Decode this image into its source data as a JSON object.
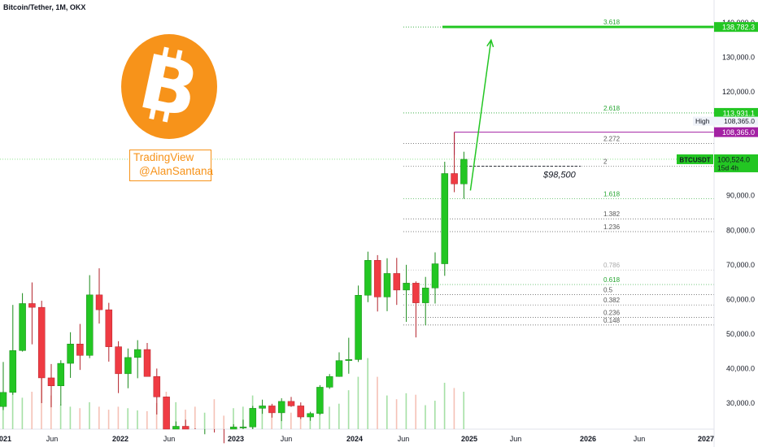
{
  "header": {
    "title": "Bitcoin/Tether, 1M, OKX"
  },
  "watermark": {
    "line1": "TradingView",
    "line2": "@AlanSantana",
    "color": "#f7931a"
  },
  "logo": {
    "icon": "bitcoin-logo-icon",
    "color": "#f7931a"
  },
  "price_axis": {
    "ticks": [
      {
        "value": 140000,
        "label": "140,000.0"
      },
      {
        "value": 130000,
        "label": "130,000.0"
      },
      {
        "value": 120000,
        "label": "120,000.0"
      },
      {
        "value": 90000,
        "label": "90,000.0"
      },
      {
        "value": 80000,
        "label": "80,000.0"
      },
      {
        "value": 70000,
        "label": "70,000.0"
      },
      {
        "value": 60000,
        "label": "60,000.0"
      },
      {
        "value": 50000,
        "label": "50,000.0"
      },
      {
        "value": 40000,
        "label": "40,000.0"
      },
      {
        "value": 30000,
        "label": "30,000.0"
      }
    ],
    "tags": [
      {
        "value": 138782.3,
        "label": "138,782.3",
        "kind": "green"
      },
      {
        "value": 113931.1,
        "label": "113,931.1",
        "kind": "green"
      },
      {
        "value": 108365.0,
        "label": "108,365.0",
        "kind": "plain",
        "prefix": "High"
      },
      {
        "value": 108365.0,
        "label": "108,365.0",
        "kind": "purple"
      }
    ],
    "current": {
      "symbol": "BTCUSDT",
      "price": "100,524.0",
      "countdown": "15d 4h"
    }
  },
  "time_axis": [
    "2021",
    "Jun",
    "2022",
    "Jun",
    "2023",
    "Jun",
    "2024",
    "Jun",
    "2025",
    "Jun",
    "2026",
    "Jun",
    "2027"
  ],
  "fib_levels": [
    {
      "label": "3.618",
      "value": 138782.3,
      "color": "#26a632",
      "emph": true
    },
    {
      "label": "2.618",
      "value": 113931.1,
      "color": "#26a632",
      "emph": true
    },
    {
      "label": "2.272",
      "value": 105100,
      "color": "#555555"
    },
    {
      "label": "2",
      "value": 98500,
      "color": "#555555"
    },
    {
      "label": "1.618",
      "value": 89100,
      "color": "#26a632"
    },
    {
      "label": "1.382",
      "value": 83300,
      "color": "#555555"
    },
    {
      "label": "1.236",
      "value": 79600,
      "color": "#555555"
    },
    {
      "label": "0.786",
      "value": 68500,
      "color": "#aaaaaa"
    },
    {
      "label": "0.618",
      "value": 64300,
      "color": "#26a632"
    },
    {
      "label": "0.5",
      "value": 61400,
      "color": "#555555"
    },
    {
      "label": "0.382",
      "value": 58400,
      "color": "#555555"
    },
    {
      "label": "0.236",
      "value": 54800,
      "color": "#555555"
    },
    {
      "label": "0.148",
      "value": 52600,
      "color": "#555555"
    }
  ],
  "annotation": {
    "text": "$98,500",
    "value": 98500
  },
  "colors": {
    "up": "#23c623",
    "down": "#ef3b43",
    "fib": "#26a632",
    "high_line": "#a321a3"
  },
  "chart_data": {
    "type": "candlestick",
    "title": "Bitcoin/Tether, 1M, OKX",
    "ylim": [
      24000,
      142000
    ],
    "months": [
      "2021-01",
      "2021-02",
      "2021-03",
      "2021-04",
      "2021-05",
      "2021-06",
      "2021-07",
      "2021-08",
      "2021-09",
      "2021-10",
      "2021-11",
      "2021-12",
      "2022-01",
      "2022-02",
      "2022-03",
      "2022-04",
      "2022-05",
      "2022-06",
      "2022-07",
      "2022-08",
      "2022-09",
      "2022-10",
      "2022-11",
      "2022-12",
      "2023-01",
      "2023-02",
      "2023-03",
      "2023-04",
      "2023-05",
      "2023-06",
      "2023-07",
      "2023-08",
      "2023-09",
      "2023-10",
      "2023-11",
      "2023-12",
      "2024-01",
      "2024-02",
      "2024-03",
      "2024-04",
      "2024-05",
      "2024-06",
      "2024-07",
      "2024-08",
      "2024-09",
      "2024-10",
      "2024-11",
      "2024-12",
      "2025-01"
    ],
    "candles": [
      {
        "o": 29000,
        "h": 41900,
        "l": 28000,
        "c": 33100
      },
      {
        "o": 33100,
        "h": 58400,
        "l": 32400,
        "c": 45200
      },
      {
        "o": 45200,
        "h": 61800,
        "l": 44900,
        "c": 58800
      },
      {
        "o": 58800,
        "h": 64900,
        "l": 47000,
        "c": 57700
      },
      {
        "o": 57700,
        "h": 59600,
        "l": 30000,
        "c": 37300
      },
      {
        "o": 37300,
        "h": 41300,
        "l": 28800,
        "c": 35000
      },
      {
        "o": 35000,
        "h": 42400,
        "l": 29300,
        "c": 41500
      },
      {
        "o": 41500,
        "h": 50500,
        "l": 37300,
        "c": 47100
      },
      {
        "o": 47100,
        "h": 52900,
        "l": 39600,
        "c": 43800
      },
      {
        "o": 43800,
        "h": 67000,
        "l": 43000,
        "c": 61300
      },
      {
        "o": 61300,
        "h": 69000,
        "l": 53000,
        "c": 57000
      },
      {
        "o": 57000,
        "h": 59000,
        "l": 42000,
        "c": 46300
      },
      {
        "o": 46300,
        "h": 47900,
        "l": 32900,
        "c": 38500
      },
      {
        "o": 38500,
        "h": 45800,
        "l": 34300,
        "c": 43200
      },
      {
        "o": 43200,
        "h": 48200,
        "l": 37200,
        "c": 45500
      },
      {
        "o": 45500,
        "h": 47400,
        "l": 37700,
        "c": 37700
      },
      {
        "o": 37700,
        "h": 40000,
        "l": 26700,
        "c": 31800
      },
      {
        "o": 31800,
        "h": 31900,
        "l": 17600,
        "c": 19900
      },
      {
        "o": 19900,
        "h": 24700,
        "l": 18800,
        "c": 23300
      },
      {
        "o": 23300,
        "h": 25200,
        "l": 19600,
        "c": 20000
      },
      {
        "o": 20000,
        "h": 22700,
        "l": 18100,
        "c": 19400
      },
      {
        "o": 19400,
        "h": 21000,
        "l": 18200,
        "c": 20500
      },
      {
        "o": 20500,
        "h": 21500,
        "l": 15600,
        "c": 17100
      },
      {
        "o": 17100,
        "h": 18400,
        "l": 16300,
        "c": 16500
      },
      {
        "o": 16500,
        "h": 23900,
        "l": 16500,
        "c": 23100
      },
      {
        "o": 23100,
        "h": 25200,
        "l": 21400,
        "c": 23100
      },
      {
        "o": 23100,
        "h": 29200,
        "l": 19500,
        "c": 28500
      },
      {
        "o": 28500,
        "h": 31000,
        "l": 26900,
        "c": 29200
      },
      {
        "o": 29200,
        "h": 29800,
        "l": 25800,
        "c": 27200
      },
      {
        "o": 27200,
        "h": 31400,
        "l": 24800,
        "c": 30500
      },
      {
        "o": 30500,
        "h": 31800,
        "l": 28900,
        "c": 29200
      },
      {
        "o": 29200,
        "h": 30200,
        "l": 25400,
        "c": 26000
      },
      {
        "o": 26000,
        "h": 27500,
        "l": 24900,
        "c": 27000
      },
      {
        "o": 27000,
        "h": 35200,
        "l": 26600,
        "c": 34600
      },
      {
        "o": 34600,
        "h": 38400,
        "l": 34100,
        "c": 37700
      },
      {
        "o": 37700,
        "h": 44700,
        "l": 37600,
        "c": 42300
      },
      {
        "o": 42300,
        "h": 48900,
        "l": 38500,
        "c": 42600
      },
      {
        "o": 42600,
        "h": 64000,
        "l": 41900,
        "c": 61200
      },
      {
        "o": 61200,
        "h": 73800,
        "l": 59200,
        "c": 71300
      },
      {
        "o": 71300,
        "h": 72800,
        "l": 56500,
        "c": 60700
      },
      {
        "o": 60700,
        "h": 71900,
        "l": 56600,
        "c": 67500
      },
      {
        "o": 67500,
        "h": 72000,
        "l": 58400,
        "c": 62700
      },
      {
        "o": 62700,
        "h": 70000,
        "l": 53500,
        "c": 64700
      },
      {
        "o": 64700,
        "h": 65200,
        "l": 49000,
        "c": 59000
      },
      {
        "o": 59000,
        "h": 66500,
        "l": 52500,
        "c": 63300
      },
      {
        "o": 63300,
        "h": 73600,
        "l": 58800,
        "c": 70300
      },
      {
        "o": 70300,
        "h": 99800,
        "l": 66800,
        "c": 96400
      },
      {
        "o": 96400,
        "h": 108365,
        "l": 91000,
        "c": 93400
      },
      {
        "o": 93400,
        "h": 102700,
        "l": 89100,
        "c": 100524
      }
    ],
    "volume_relative": [
      0.38,
      0.55,
      0.42,
      0.5,
      0.72,
      0.45,
      0.33,
      0.3,
      0.28,
      0.36,
      0.3,
      0.26,
      0.3,
      0.28,
      0.25,
      0.24,
      0.35,
      0.5,
      0.36,
      0.26,
      0.3,
      0.22,
      0.4,
      0.18,
      0.28,
      0.3,
      0.45,
      0.3,
      0.24,
      0.3,
      0.22,
      0.26,
      0.2,
      0.32,
      0.3,
      0.34,
      0.52,
      0.7,
      0.95,
      0.7,
      0.45,
      0.4,
      0.48,
      0.46,
      0.32,
      0.38,
      0.62,
      0.55,
      0.5
    ],
    "projection": {
      "from": {
        "month": "2025-01",
        "price": 91500
      },
      "to": {
        "month": "2025-04",
        "price": 135000
      }
    },
    "high_marker": {
      "price": 108365,
      "from_month": "2024-12"
    }
  }
}
